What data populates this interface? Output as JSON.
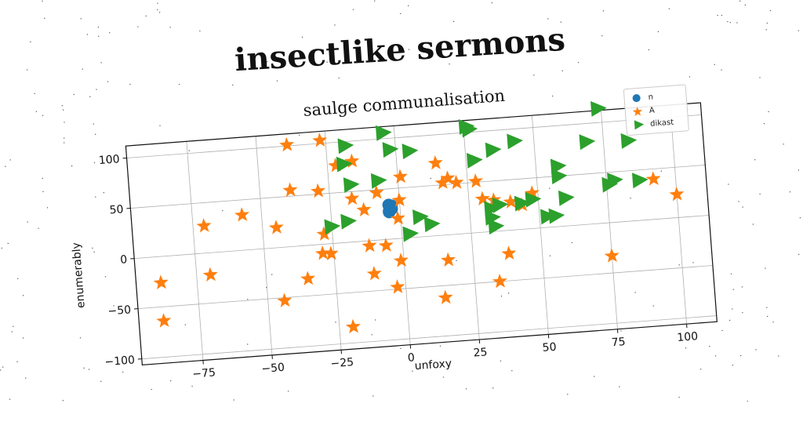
{
  "figure_title": "insectlike sermons",
  "chart_data": {
    "type": "scatter",
    "title": "saulge communalisation",
    "xlabel": "unfoxy",
    "ylabel": "enumerably",
    "xlim": [
      -97,
      111
    ],
    "ylim": [
      -106,
      112
    ],
    "xticks": [
      -75,
      -50,
      -25,
      0,
      25,
      50,
      75,
      100
    ],
    "yticks": [
      -100,
      -50,
      0,
      50,
      100
    ],
    "grid": true,
    "legend_position": "top-right",
    "series": [
      {
        "name": "n",
        "marker": "circle",
        "color": "#1f77b4",
        "points": [
          [
            -4,
            34
          ],
          [
            -4,
            28
          ],
          [
            -3,
            30
          ],
          [
            -4,
            27
          ],
          [
            -3,
            33
          ]
        ]
      },
      {
        "name": "A",
        "marker": "star",
        "color": "#ff7f0e",
        "points": [
          [
            -88,
            -26
          ],
          [
            -88,
            -64
          ],
          [
            -71,
            27
          ],
          [
            -70,
            -22
          ],
          [
            -57,
            35
          ],
          [
            -45,
            20
          ],
          [
            -44,
            -53
          ],
          [
            -39,
            101
          ],
          [
            -39,
            56
          ],
          [
            -35,
            -33
          ],
          [
            -29,
            53
          ],
          [
            -28,
            10
          ],
          [
            -29,
            -9
          ],
          [
            -26,
            -10
          ],
          [
            -27,
            103
          ],
          [
            -22,
            77
          ],
          [
            -20,
            -84
          ],
          [
            -16,
            80
          ],
          [
            -17,
            43
          ],
          [
            -13,
            31
          ],
          [
            -12,
            -5
          ],
          [
            -11,
            -33
          ],
          [
            -8,
            47
          ],
          [
            -6,
            -6
          ],
          [
            -3,
            -48
          ],
          [
            -1,
            -22
          ],
          [
            -1,
            20
          ],
          [
            0,
            38
          ],
          [
            1,
            61
          ],
          [
            14,
            72
          ],
          [
            14,
            -62
          ],
          [
            16,
            52
          ],
          [
            16,
            -25
          ],
          [
            18,
            56
          ],
          [
            21,
            51
          ],
          [
            28,
            51
          ],
          [
            30,
            33
          ],
          [
            34,
            31
          ],
          [
            34,
            -50
          ],
          [
            38,
            -23
          ],
          [
            40,
            28
          ],
          [
            44,
            24
          ],
          [
            48,
            35
          ],
          [
            75,
            -33
          ],
          [
            92,
            40
          ],
          [
            100,
            23
          ]
        ]
      },
      {
        "name": "dikast",
        "marker": "triangle-right",
        "color": "#2ca02c",
        "points": [
          [
            -4,
            106
          ],
          [
            -18,
            96
          ],
          [
            -19,
            78
          ],
          [
            -17,
            57
          ],
          [
            -25,
            17
          ],
          [
            -19,
            21
          ],
          [
            -7,
            59
          ],
          [
            -2,
            89
          ],
          [
            5,
            86
          ],
          [
            3,
            4
          ],
          [
            7,
            20
          ],
          [
            11,
            12
          ],
          [
            26,
            106
          ],
          [
            27,
            103
          ],
          [
            28,
            72
          ],
          [
            35,
            81
          ],
          [
            43,
            88
          ],
          [
            58,
            60
          ],
          [
            58,
            50
          ],
          [
            60,
            28
          ],
          [
            53,
            11
          ],
          [
            56,
            11
          ],
          [
            33,
            23
          ],
          [
            33,
            14
          ],
          [
            34,
            5
          ],
          [
            36,
            26
          ],
          [
            44,
            26
          ],
          [
            48,
            29
          ],
          [
            69,
            82
          ],
          [
            78,
            42
          ],
          [
            84,
            80
          ],
          [
            74,
            114
          ],
          [
            87,
            40
          ],
          [
            76,
            38
          ]
        ]
      }
    ]
  }
}
